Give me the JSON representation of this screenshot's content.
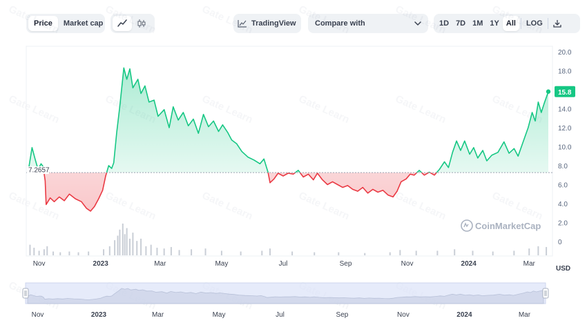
{
  "toolbar": {
    "chart_type": {
      "price": "Price",
      "market_cap": "Market cap"
    },
    "tradingview": "TradingView",
    "compare": "Compare with",
    "ranges": [
      "1D",
      "7D",
      "1M",
      "1Y",
      "All"
    ],
    "active_range": "All",
    "log": "LOG"
  },
  "watermark": "Gate Learn",
  "attribution": "CoinMarketCap",
  "colors": {
    "up": "#16c784",
    "down": "#ea3943",
    "baseline": "#9aa2b1",
    "navigator": "#dbe3f8"
  },
  "chart_data": {
    "type": "area",
    "baseline": 7.2657,
    "baseline_label": "7.2657",
    "last_value": 15.8,
    "last_label": "15.8",
    "ylim": [
      0,
      20
    ],
    "yticks": [
      "20.0",
      "18.0",
      "16.0",
      "14.0",
      "12.0",
      "10.0",
      "8.0",
      "6.0",
      "4.0",
      "2.0",
      "0"
    ],
    "ytick_values": [
      20,
      18,
      16,
      14,
      12,
      10,
      8,
      6,
      4,
      2,
      0
    ],
    "currency": "USD",
    "x_range": [
      "2022-10-22",
      "2024-03-20"
    ],
    "xticks": [
      {
        "label": "Nov",
        "date": "2022-11-01",
        "bold": false
      },
      {
        "label": "2023",
        "date": "2023-01-01",
        "bold": true
      },
      {
        "label": "Mar",
        "date": "2023-03-01",
        "bold": false
      },
      {
        "label": "May",
        "date": "2023-05-01",
        "bold": false
      },
      {
        "label": "Jul",
        "date": "2023-07-01",
        "bold": false
      },
      {
        "label": "Sep",
        "date": "2023-09-01",
        "bold": false
      },
      {
        "label": "Nov",
        "date": "2023-11-01",
        "bold": false
      },
      {
        "label": "2024",
        "date": "2024-01-01",
        "bold": true
      },
      {
        "label": "Mar",
        "date": "2024-03-01",
        "bold": false
      }
    ],
    "series": [
      {
        "points": [
          [
            "2022-10-22",
            7.9
          ],
          [
            "2022-10-25",
            9.9
          ],
          [
            "2022-10-28",
            8.7
          ],
          [
            "2022-10-31",
            7.6
          ],
          [
            "2022-11-03",
            8.2
          ],
          [
            "2022-11-05",
            7.9
          ],
          [
            "2022-11-07",
            6.4
          ],
          [
            "2022-11-08",
            3.9
          ],
          [
            "2022-11-12",
            4.6
          ],
          [
            "2022-11-16",
            4.2
          ],
          [
            "2022-11-21",
            4.7
          ],
          [
            "2022-11-26",
            4.3
          ],
          [
            "2022-12-01",
            5.0
          ],
          [
            "2022-12-07",
            4.5
          ],
          [
            "2022-12-13",
            4.2
          ],
          [
            "2022-12-18",
            3.5
          ],
          [
            "2022-12-22",
            3.2
          ],
          [
            "2022-12-26",
            3.7
          ],
          [
            "2022-12-30",
            4.5
          ],
          [
            "2023-01-03",
            5.4
          ],
          [
            "2023-01-06",
            6.9
          ],
          [
            "2023-01-09",
            8.0
          ],
          [
            "2023-01-12",
            7.7
          ],
          [
            "2023-01-14",
            8.3
          ],
          [
            "2023-01-17",
            11.5
          ],
          [
            "2023-01-20",
            14.2
          ],
          [
            "2023-01-24",
            18.3
          ],
          [
            "2023-01-27",
            17.1
          ],
          [
            "2023-01-30",
            18.2
          ],
          [
            "2023-02-02",
            16.2
          ],
          [
            "2023-02-07",
            17.1
          ],
          [
            "2023-02-10",
            15.6
          ],
          [
            "2023-02-14",
            16.4
          ],
          [
            "2023-02-18",
            14.7
          ],
          [
            "2023-02-23",
            14.9
          ],
          [
            "2023-02-27",
            13.2
          ],
          [
            "2023-03-05",
            13.9
          ],
          [
            "2023-03-10",
            12.0
          ],
          [
            "2023-03-14",
            14.2
          ],
          [
            "2023-03-19",
            12.8
          ],
          [
            "2023-03-24",
            13.6
          ],
          [
            "2023-03-29",
            12.2
          ],
          [
            "2023-04-03",
            12.9
          ],
          [
            "2023-04-08",
            11.4
          ],
          [
            "2023-04-13",
            13.4
          ],
          [
            "2023-04-18",
            12.1
          ],
          [
            "2023-04-23",
            12.7
          ],
          [
            "2023-04-28",
            11.6
          ],
          [
            "2023-05-02",
            12.3
          ],
          [
            "2023-05-07",
            11.5
          ],
          [
            "2023-05-11",
            10.7
          ],
          [
            "2023-05-16",
            10.3
          ],
          [
            "2023-05-21",
            9.5
          ],
          [
            "2023-05-27",
            8.9
          ],
          [
            "2023-06-02",
            8.6
          ],
          [
            "2023-06-08",
            8.2
          ],
          [
            "2023-06-12",
            8.7
          ],
          [
            "2023-06-16",
            7.3
          ],
          [
            "2023-06-18",
            6.2
          ],
          [
            "2023-06-22",
            6.6
          ],
          [
            "2023-06-26",
            7.2
          ],
          [
            "2023-07-01",
            6.9
          ],
          [
            "2023-07-06",
            7.2
          ],
          [
            "2023-07-11",
            7.1
          ],
          [
            "2023-07-16",
            7.5
          ],
          [
            "2023-07-21",
            6.8
          ],
          [
            "2023-07-26",
            7.1
          ],
          [
            "2023-07-31",
            6.5
          ],
          [
            "2023-08-04",
            7.2
          ],
          [
            "2023-08-09",
            6.5
          ],
          [
            "2023-08-14",
            6.0
          ],
          [
            "2023-08-19",
            6.3
          ],
          [
            "2023-08-24",
            6.0
          ],
          [
            "2023-08-29",
            5.7
          ],
          [
            "2023-09-03",
            5.9
          ],
          [
            "2023-09-08",
            5.5
          ],
          [
            "2023-09-13",
            5.3
          ],
          [
            "2023-09-18",
            5.7
          ],
          [
            "2023-09-23",
            5.1
          ],
          [
            "2023-09-28",
            5.5
          ],
          [
            "2023-10-03",
            5.2
          ],
          [
            "2023-10-08",
            5.4
          ],
          [
            "2023-10-13",
            4.9
          ],
          [
            "2023-10-18",
            4.7
          ],
          [
            "2023-10-22",
            5.3
          ],
          [
            "2023-10-26",
            6.3
          ],
          [
            "2023-10-31",
            6.6
          ],
          [
            "2023-11-04",
            7.1
          ],
          [
            "2023-11-08",
            7.0
          ],
          [
            "2023-11-13",
            7.5
          ],
          [
            "2023-11-18",
            7.0
          ],
          [
            "2023-11-23",
            7.3
          ],
          [
            "2023-11-28",
            7.0
          ],
          [
            "2023-12-03",
            7.6
          ],
          [
            "2023-12-08",
            8.4
          ],
          [
            "2023-12-12",
            7.8
          ],
          [
            "2023-12-16",
            9.4
          ],
          [
            "2023-12-20",
            10.6
          ],
          [
            "2023-12-24",
            9.6
          ],
          [
            "2023-12-28",
            10.6
          ],
          [
            "2024-01-02",
            9.2
          ],
          [
            "2024-01-06",
            9.9
          ],
          [
            "2024-01-10",
            8.8
          ],
          [
            "2024-01-15",
            9.6
          ],
          [
            "2024-01-19",
            8.5
          ],
          [
            "2024-01-24",
            9.1
          ],
          [
            "2024-01-30",
            9.4
          ],
          [
            "2024-02-05",
            10.5
          ],
          [
            "2024-02-10",
            9.3
          ],
          [
            "2024-02-15",
            9.8
          ],
          [
            "2024-02-19",
            9.0
          ],
          [
            "2024-02-24",
            10.5
          ],
          [
            "2024-02-29",
            12.0
          ],
          [
            "2024-03-04",
            13.6
          ],
          [
            "2024-03-07",
            12.7
          ],
          [
            "2024-03-10",
            14.7
          ],
          [
            "2024-03-13",
            13.6
          ],
          [
            "2024-03-16",
            14.6
          ],
          [
            "2024-03-20",
            15.8
          ]
        ]
      }
    ],
    "volume": [
      [
        "2022-10-23",
        1.4
      ],
      [
        "2022-10-27",
        1.0
      ],
      [
        "2022-11-01",
        0.6
      ],
      [
        "2022-11-06",
        0.8
      ],
      [
        "2022-11-09",
        1.2
      ],
      [
        "2022-11-15",
        0.5
      ],
      [
        "2022-11-22",
        0.4
      ],
      [
        "2022-12-01",
        0.5
      ],
      [
        "2022-12-10",
        0.4
      ],
      [
        "2022-12-20",
        0.5
      ],
      [
        "2023-01-04",
        0.8
      ],
      [
        "2023-01-10",
        1.2
      ],
      [
        "2023-01-15",
        2.0
      ],
      [
        "2023-01-18",
        2.6
      ],
      [
        "2023-01-20",
        3.4
      ],
      [
        "2023-01-23",
        4.2
      ],
      [
        "2023-01-25",
        2.8
      ],
      [
        "2023-01-27",
        3.6
      ],
      [
        "2023-01-30",
        2.2
      ],
      [
        "2023-02-02",
        3.0
      ],
      [
        "2023-02-06",
        1.9
      ],
      [
        "2023-02-10",
        2.2
      ],
      [
        "2023-02-15",
        1.2
      ],
      [
        "2023-02-20",
        1.4
      ],
      [
        "2023-02-26",
        1.0
      ],
      [
        "2023-03-05",
        0.9
      ],
      [
        "2023-03-12",
        1.1
      ],
      [
        "2023-03-20",
        0.7
      ],
      [
        "2023-04-01",
        0.8
      ],
      [
        "2023-04-15",
        0.9
      ],
      [
        "2023-05-01",
        0.6
      ],
      [
        "2023-05-20",
        0.5
      ],
      [
        "2023-06-10",
        0.6
      ],
      [
        "2023-06-18",
        0.9
      ],
      [
        "2023-07-10",
        0.5
      ],
      [
        "2023-08-01",
        0.4
      ],
      [
        "2023-08-25",
        0.4
      ],
      [
        "2023-09-20",
        0.3
      ],
      [
        "2023-10-15",
        0.4
      ],
      [
        "2023-10-25",
        0.7
      ],
      [
        "2023-11-10",
        0.6
      ],
      [
        "2023-12-01",
        0.6
      ],
      [
        "2023-12-18",
        0.8
      ],
      [
        "2024-01-05",
        0.6
      ],
      [
        "2024-01-25",
        0.5
      ],
      [
        "2024-02-15",
        0.6
      ],
      [
        "2024-03-01",
        0.9
      ],
      [
        "2024-03-10",
        1.2
      ],
      [
        "2024-03-18",
        1.1
      ]
    ]
  }
}
